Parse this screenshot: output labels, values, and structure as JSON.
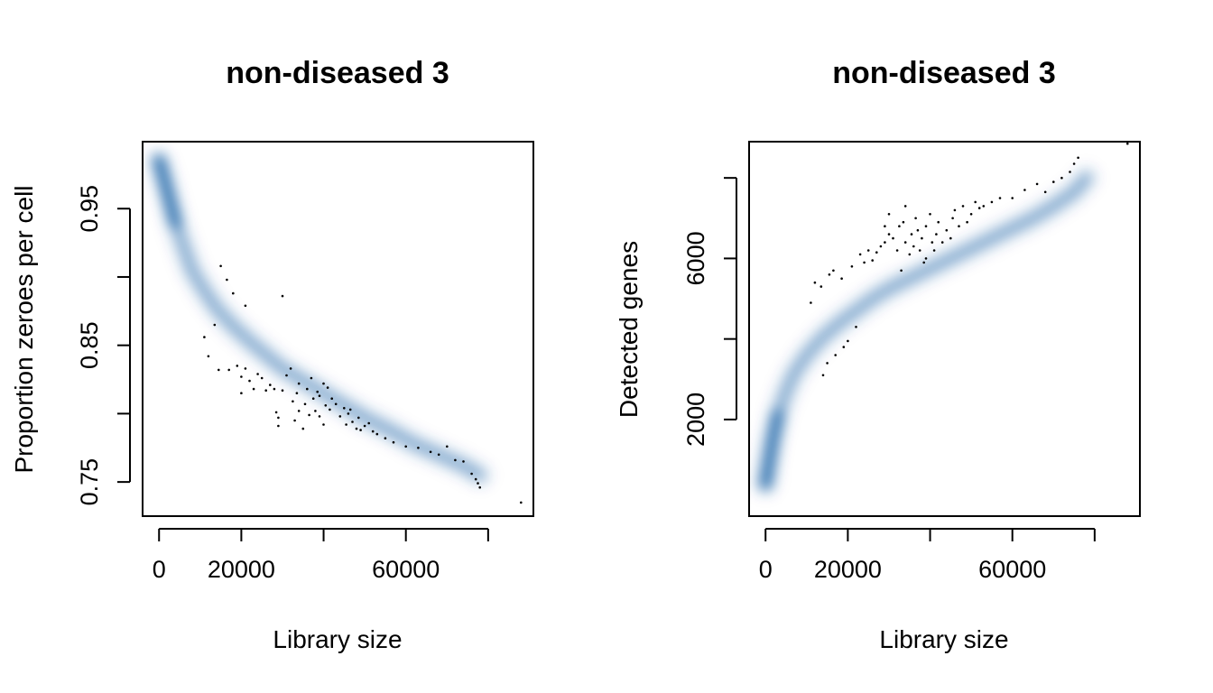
{
  "chart_data": [
    {
      "type": "scatter",
      "title": "non-diseased 3",
      "xlabel": "Library size",
      "ylabel": "Proportion zeroes per cell",
      "xlim": [
        -4000,
        91000
      ],
      "ylim": [
        0.725,
        0.999
      ],
      "xticks": [
        0,
        20000,
        40000,
        60000,
        80000
      ],
      "xtick_labels": [
        "0",
        "20000",
        "",
        "60000",
        ""
      ],
      "yticks": [
        0.75,
        0.8,
        0.85,
        0.9,
        0.95
      ],
      "ytick_labels": [
        "0.75",
        "",
        "0.85",
        "",
        "0.95"
      ],
      "grid": false,
      "legend": "none",
      "density_color": "#08519c",
      "density_curve": [
        [
          0,
          0.985
        ],
        [
          1000,
          0.975
        ],
        [
          2500,
          0.958
        ],
        [
          4000,
          0.94
        ],
        [
          6000,
          0.922
        ],
        [
          8000,
          0.905
        ],
        [
          11000,
          0.89
        ],
        [
          14000,
          0.877
        ],
        [
          18000,
          0.864
        ],
        [
          22000,
          0.853
        ],
        [
          26000,
          0.843
        ],
        [
          30000,
          0.833
        ],
        [
          35000,
          0.824
        ],
        [
          40000,
          0.815
        ],
        [
          45000,
          0.806
        ],
        [
          50000,
          0.797
        ],
        [
          56000,
          0.788
        ],
        [
          62000,
          0.778
        ],
        [
          68000,
          0.77
        ],
        [
          74000,
          0.762
        ],
        [
          78000,
          0.755
        ]
      ],
      "points": [
        [
          11000,
          0.856
        ],
        [
          12000,
          0.842
        ],
        [
          13500,
          0.865
        ],
        [
          14500,
          0.832
        ],
        [
          15000,
          0.908
        ],
        [
          16500,
          0.898
        ],
        [
          17000,
          0.832
        ],
        [
          18000,
          0.888
        ],
        [
          19000,
          0.835
        ],
        [
          20000,
          0.815
        ],
        [
          20000,
          0.827
        ],
        [
          21000,
          0.833
        ],
        [
          21000,
          0.879
        ],
        [
          22000,
          0.824
        ],
        [
          23000,
          0.818
        ],
        [
          24000,
          0.829
        ],
        [
          25000,
          0.826
        ],
        [
          26000,
          0.817
        ],
        [
          27000,
          0.821
        ],
        [
          28000,
          0.818
        ],
        [
          28500,
          0.801
        ],
        [
          29000,
          0.797
        ],
        [
          29000,
          0.791
        ],
        [
          30000,
          0.817
        ],
        [
          30000,
          0.886
        ],
        [
          31000,
          0.828
        ],
        [
          32000,
          0.833
        ],
        [
          32500,
          0.809
        ],
        [
          33000,
          0.795
        ],
        [
          33500,
          0.815
        ],
        [
          34000,
          0.802
        ],
        [
          34000,
          0.822
        ],
        [
          35000,
          0.789
        ],
        [
          35500,
          0.807
        ],
        [
          36000,
          0.818
        ],
        [
          36500,
          0.799
        ],
        [
          37000,
          0.826
        ],
        [
          37500,
          0.811
        ],
        [
          38000,
          0.802
        ],
        [
          38500,
          0.816
        ],
        [
          39000,
          0.798
        ],
        [
          39000,
          0.813
        ],
        [
          40000,
          0.822
        ],
        [
          40000,
          0.792
        ],
        [
          40500,
          0.806
        ],
        [
          41000,
          0.819
        ],
        [
          41500,
          0.803
        ],
        [
          42000,
          0.811
        ],
        [
          43000,
          0.807
        ],
        [
          44000,
          0.798
        ],
        [
          45000,
          0.804
        ],
        [
          45500,
          0.792
        ],
        [
          46000,
          0.8
        ],
        [
          46500,
          0.803
        ],
        [
          47000,
          0.794
        ],
        [
          48000,
          0.789
        ],
        [
          48500,
          0.797
        ],
        [
          49000,
          0.788
        ],
        [
          50000,
          0.791
        ],
        [
          51000,
          0.793
        ],
        [
          52000,
          0.787
        ],
        [
          53000,
          0.785
        ],
        [
          55000,
          0.782
        ],
        [
          57000,
          0.779
        ],
        [
          60000,
          0.776
        ],
        [
          63000,
          0.775
        ],
        [
          66000,
          0.772
        ],
        [
          68000,
          0.77
        ],
        [
          70000,
          0.776
        ],
        [
          72000,
          0.766
        ],
        [
          74000,
          0.765
        ],
        [
          76000,
          0.756
        ],
        [
          77000,
          0.752
        ],
        [
          77500,
          0.749
        ],
        [
          78000,
          0.746
        ],
        [
          88000,
          0.735
        ]
      ]
    },
    {
      "type": "scatter",
      "title": "non-diseased 3",
      "xlabel": "Library size",
      "ylabel": "Detected genes",
      "xlim": [
        -4000,
        91000
      ],
      "ylim": [
        -400,
        8900
      ],
      "xticks": [
        0,
        20000,
        40000,
        60000,
        80000
      ],
      "xtick_labels": [
        "0",
        "20000",
        "",
        "60000",
        ""
      ],
      "yticks": [
        2000,
        4000,
        6000,
        8000
      ],
      "ytick_labels": [
        "2000",
        "",
        "6000",
        ""
      ],
      "grid": false,
      "legend": "none",
      "density_color": "#08519c",
      "density_curve": [
        [
          0,
          400
        ],
        [
          600,
          900
        ],
        [
          1500,
          1500
        ],
        [
          3000,
          2100
        ],
        [
          5000,
          2700
        ],
        [
          7000,
          3150
        ],
        [
          10000,
          3600
        ],
        [
          14000,
          4050
        ],
        [
          18000,
          4400
        ],
        [
          22000,
          4700
        ],
        [
          26000,
          5000
        ],
        [
          30000,
          5250
        ],
        [
          35000,
          5500
        ],
        [
          40000,
          5750
        ],
        [
          45000,
          6000
        ],
        [
          50000,
          6250
        ],
        [
          55000,
          6500
        ],
        [
          60000,
          6750
        ],
        [
          65000,
          7000
        ],
        [
          70000,
          7300
        ],
        [
          75000,
          7650
        ],
        [
          78000,
          8000
        ]
      ],
      "points": [
        [
          11000,
          4900
        ],
        [
          12000,
          5400
        ],
        [
          13500,
          5300
        ],
        [
          14000,
          3100
        ],
        [
          15000,
          3400
        ],
        [
          15500,
          5600
        ],
        [
          16500,
          5700
        ],
        [
          17000,
          3600
        ],
        [
          18500,
          5500
        ],
        [
          19000,
          3800
        ],
        [
          20000,
          3950
        ],
        [
          21000,
          5800
        ],
        [
          22000,
          4300
        ],
        [
          23000,
          6100
        ],
        [
          24000,
          5900
        ],
        [
          25000,
          6200
        ],
        [
          26000,
          5950
        ],
        [
          27000,
          6150
        ],
        [
          28000,
          6300
        ],
        [
          29000,
          6400
        ],
        [
          29000,
          6800
        ],
        [
          30000,
          6600
        ],
        [
          30000,
          7100
        ],
        [
          31000,
          6500
        ],
        [
          32000,
          6200
        ],
        [
          32500,
          6800
        ],
        [
          33000,
          5700
        ],
        [
          33500,
          6900
        ],
        [
          34000,
          6400
        ],
        [
          34000,
          7300
        ],
        [
          35000,
          6100
        ],
        [
          35500,
          6600
        ],
        [
          36000,
          6300
        ],
        [
          36500,
          7000
        ],
        [
          37000,
          6700
        ],
        [
          37500,
          6200
        ],
        [
          38000,
          6500
        ],
        [
          38500,
          5900
        ],
        [
          39000,
          6800
        ],
        [
          39000,
          6000
        ],
        [
          40000,
          7100
        ],
        [
          40500,
          6400
        ],
        [
          41000,
          6200
        ],
        [
          41500,
          6600
        ],
        [
          42000,
          6900
        ],
        [
          43000,
          6400
        ],
        [
          44000,
          6700
        ],
        [
          45000,
          6500
        ],
        [
          45500,
          7000
        ],
        [
          46000,
          7200
        ],
        [
          47000,
          6800
        ],
        [
          48000,
          7300
        ],
        [
          49000,
          6900
        ],
        [
          50000,
          7100
        ],
        [
          51000,
          7400
        ],
        [
          52000,
          7250
        ],
        [
          53000,
          7300
        ],
        [
          55000,
          7400
        ],
        [
          57000,
          7500
        ],
        [
          60000,
          7500
        ],
        [
          63000,
          7700
        ],
        [
          66000,
          7850
        ],
        [
          68000,
          7650
        ],
        [
          70000,
          7900
        ],
        [
          72000,
          8000
        ],
        [
          74000,
          8150
        ],
        [
          75000,
          8350
        ],
        [
          76000,
          8500
        ],
        [
          88000,
          8850
        ]
      ]
    }
  ]
}
